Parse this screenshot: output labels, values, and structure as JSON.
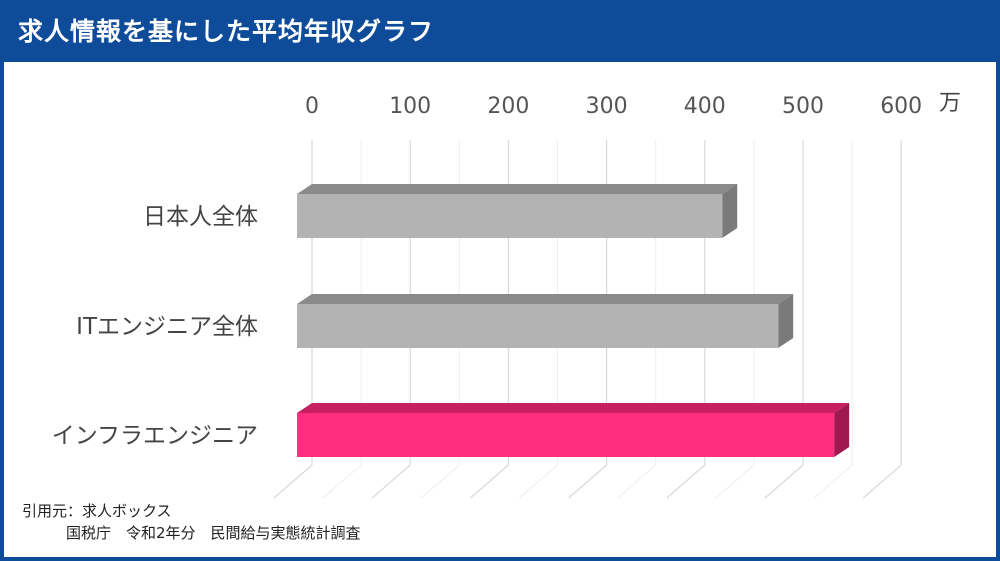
{
  "header": {
    "title": "求人情報を基にした平均年収グラフ"
  },
  "chart_data": {
    "type": "bar",
    "orientation": "horizontal",
    "style": "3d",
    "categories": [
      "日本人全体",
      "ITエンジニア全体",
      "インフラエンジニア"
    ],
    "values": [
      433,
      490,
      547
    ],
    "xticks": [
      "0",
      "100",
      "200",
      "300",
      "400",
      "500",
      "600"
    ],
    "xlim": [
      0,
      600
    ],
    "unit": "万",
    "grid": true,
    "colors": [
      "#b3b3b3",
      "#b3b3b3",
      "#ff2e7e"
    ],
    "top_colors": [
      "#8a8a8a",
      "#8a8a8a",
      "#c81f63"
    ],
    "side_colors": [
      "#7a7a7a",
      "#7a7a7a",
      "#a01850"
    ]
  },
  "source": {
    "line1": "引用元：求人ボックス",
    "line2": "国税庁　令和2年分　民間給与実態統計調査"
  }
}
